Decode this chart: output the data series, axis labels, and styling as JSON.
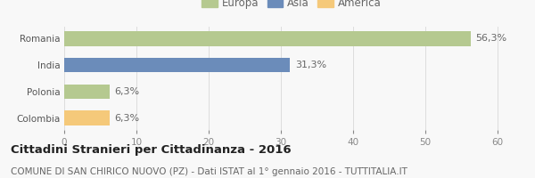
{
  "categories": [
    "Romania",
    "India",
    "Polonia",
    "Colombia"
  ],
  "values": [
    56.3,
    31.3,
    6.3,
    6.3
  ],
  "bar_colors": [
    "#b5c990",
    "#6b8cba",
    "#b5c990",
    "#f5c97a"
  ],
  "labels": [
    "56,3%",
    "31,3%",
    "6,3%",
    "6,3%"
  ],
  "legend": [
    {
      "label": "Europa",
      "color": "#b5c990"
    },
    {
      "label": "Asia",
      "color": "#6b8cba"
    },
    {
      "label": "America",
      "color": "#f5c97a"
    }
  ],
  "xlim": [
    0,
    63
  ],
  "xticks": [
    0,
    10,
    20,
    30,
    40,
    50,
    60
  ],
  "title_bold": "Cittadini Stranieri per Cittadinanza - 2016",
  "subtitle": "COMUNE DI SAN CHIRICO NUOVO (PZ) - Dati ISTAT al 1° gennaio 2016 - TUTTITALIA.IT",
  "bg_color": "#f8f8f8",
  "bar_height": 0.55,
  "label_fontsize": 8,
  "tick_fontsize": 7.5,
  "title_fontsize": 9.5,
  "subtitle_fontsize": 7.5
}
